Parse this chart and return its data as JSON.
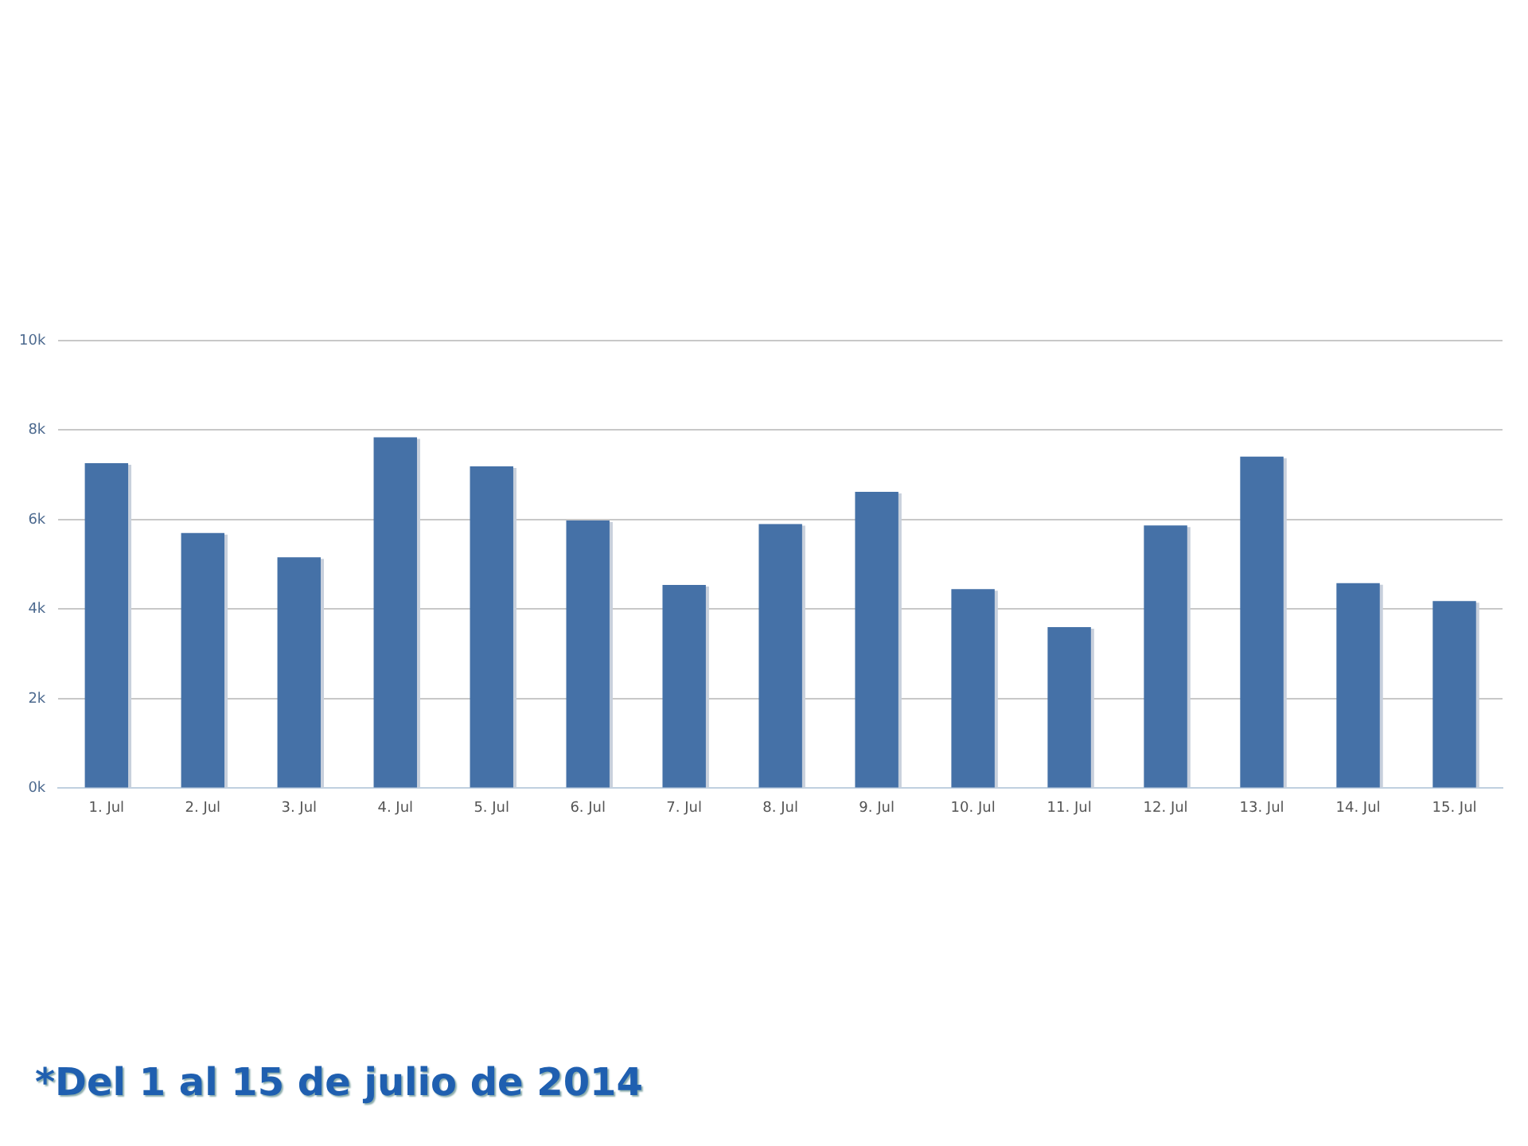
{
  "chart_data": {
    "type": "bar",
    "categories": [
      "1. Jul",
      "2. Jul",
      "3. Jul",
      "4. Jul",
      "5. Jul",
      "6. Jul",
      "7. Jul",
      "8. Jul",
      "9. Jul",
      "10. Jul",
      "11. Jul",
      "12. Jul",
      "13. Jul",
      "14. Jul",
      "15. Jul"
    ],
    "values": [
      7260,
      5700,
      5160,
      7840,
      7190,
      5980,
      4540,
      5900,
      6620,
      4450,
      3600,
      5870,
      7410,
      4580,
      4180
    ],
    "color": "#4571a7",
    "ylim": [
      0,
      10000
    ],
    "yticks": [
      {
        "value": 0,
        "label": "0k"
      },
      {
        "value": 2000,
        "label": "2k"
      },
      {
        "value": 4000,
        "label": "4k"
      },
      {
        "value": 6000,
        "label": "6k"
      },
      {
        "value": 8000,
        "label": "8k"
      },
      {
        "value": 10000,
        "label": "10k"
      }
    ],
    "grid": "y",
    "legend": false,
    "annotations": [
      "*Del 1 al 15 de julio de 2014"
    ]
  }
}
